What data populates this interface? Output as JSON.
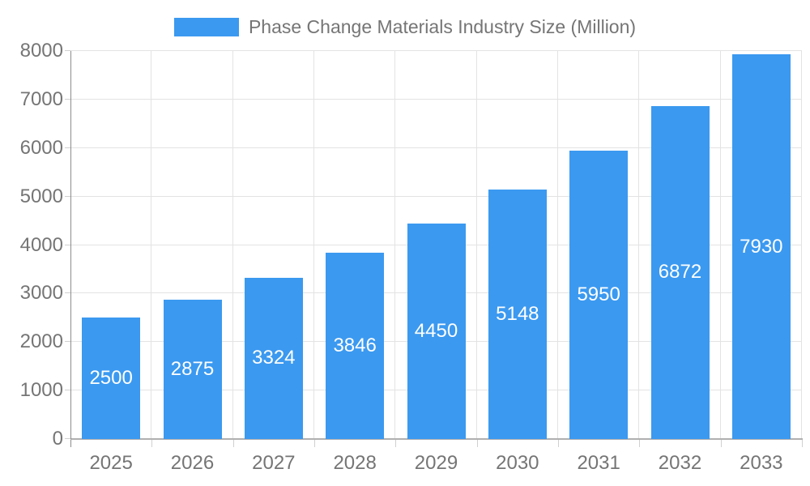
{
  "legend": {
    "label": "Phase Change Materials Industry Size (Million)"
  },
  "colors": {
    "bar": "#3B99F0",
    "bar_label": "#ffffff",
    "axis_text": "#757575",
    "gridline": "#e3e3e3",
    "x_axis_line": "#b0b0b0",
    "y_axis_line": "#8c8c8c",
    "tick_mark": "#d0d0d0",
    "background": "#ffffff"
  },
  "chart_data": {
    "type": "bar",
    "title": "Phase Change Materials Industry Size (Million)",
    "legend_position": "top",
    "categories": [
      "2025",
      "2026",
      "2027",
      "2028",
      "2029",
      "2030",
      "2031",
      "2032",
      "2033"
    ],
    "series": [
      {
        "name": "Phase Change Materials Industry Size (Million)",
        "values": [
          2500,
          2875,
          3324,
          3846,
          4450,
          5148,
          5950,
          6872,
          7930
        ]
      }
    ],
    "value_labels": {
      "position": "inside-center",
      "color": "#ffffff"
    },
    "xlabel": "",
    "ylabel": "",
    "ylim": [
      0,
      8000
    ],
    "yticks": [
      0,
      1000,
      2000,
      3000,
      4000,
      5000,
      6000,
      7000,
      8000
    ],
    "grid": true
  }
}
